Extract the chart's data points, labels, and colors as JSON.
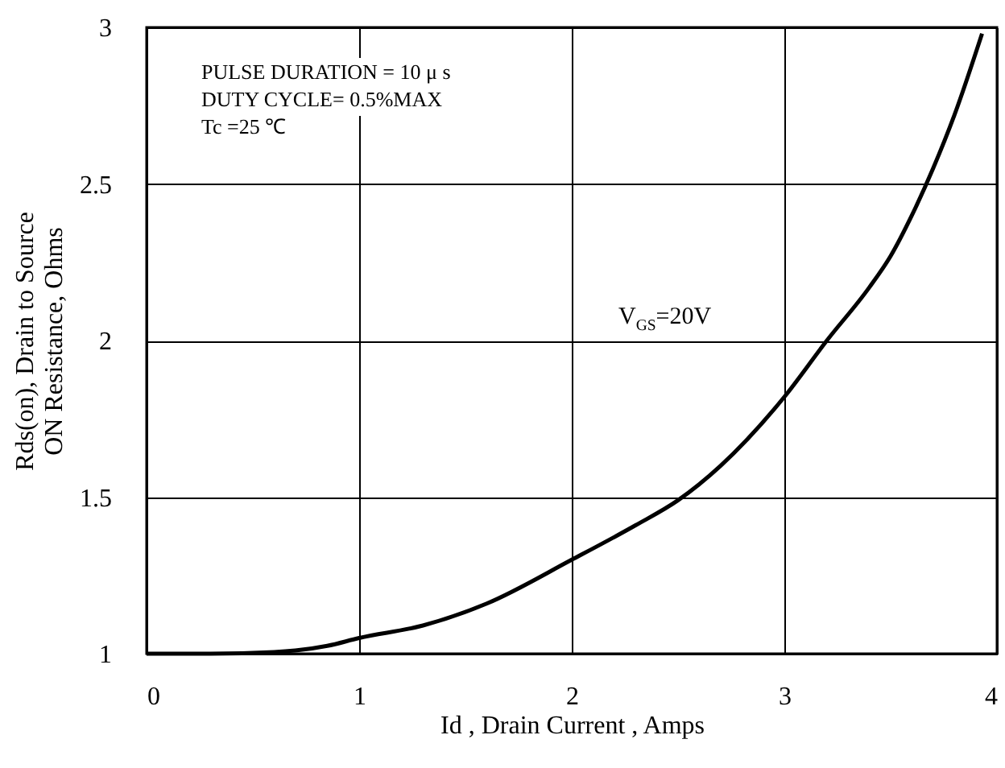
{
  "chart_data": {
    "type": "line",
    "xlabel": "Id , Drain Current , Amps",
    "ylabel": "Rds(on), Drain to Source ON Resistance, Ohms",
    "x": [
      0,
      0.3,
      0.6,
      0.7,
      0.85,
      1,
      1.3,
      1.6,
      2,
      2.3,
      2.5,
      2.7,
      3,
      3.2,
      3.4,
      3.5,
      3.6,
      3.7,
      3.8,
      3.93
    ],
    "series": [
      {
        "name": "V$_{GS}$=20V",
        "color": "#000000",
        "values": [
          1,
          1,
          1.005,
          1.01,
          1.025,
          1.05,
          1.09,
          1.16,
          1.3,
          1.41,
          1.49,
          1.6,
          1.82,
          2.0,
          2.17,
          2.27,
          2.4,
          2.55,
          2.72,
          2.98
        ]
      }
    ],
    "xlim": [
      0,
      4
    ],
    "xticks": [
      0,
      1,
      2,
      3,
      4
    ],
    "ylim": [
      1,
      3
    ],
    "yticks": [
      1,
      1.5,
      2,
      2.5,
      3
    ],
    "grid": true,
    "line_style": "solid",
    "marker": "none",
    "annotations": [
      "PULSE   DURATION = 10 μ s",
      "DUTY   CYCLE= 0.5%MAX",
      "Tc =25  ℃"
    ]
  }
}
